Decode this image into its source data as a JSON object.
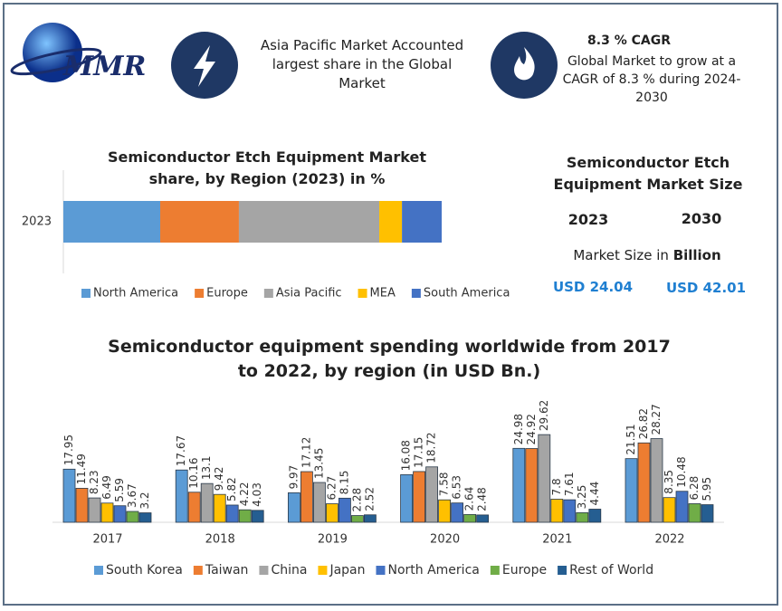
{
  "header": {
    "logo": "MMR",
    "highlight": "Asia Pacific Market Accounted largest share in the Global Market",
    "cagr_title": "8.3 % CAGR",
    "cagr_text": "Global Market to grow at a CAGR of 8.3 % during 2024-2030"
  },
  "market_size": {
    "title": "Semiconductor Etch Equipment Market Size",
    "years": [
      "2023",
      "2030"
    ],
    "unit_label": "Market Size in",
    "unit": "Billion",
    "values": [
      "USD 24.04",
      "USD 42.01"
    ]
  },
  "chart_data": [
    {
      "type": "bar",
      "orientation": "horizontal",
      "stacked": true,
      "title": "Semiconductor Etch Equipment Market share, by Region (2023) in %",
      "categories": [
        "2023"
      ],
      "legend": "bottom",
      "series": [
        {
          "name": "North America",
          "color": "#5b9bd5",
          "values": [
            25.6
          ]
        },
        {
          "name": "Europe",
          "color": "#ed7d31",
          "values": [
            20.8
          ]
        },
        {
          "name": "Asia Pacific",
          "color": "#a5a5a5",
          "values": [
            37.1
          ]
        },
        {
          "name": "MEA",
          "color": "#ffc000",
          "values": [
            6.0
          ]
        },
        {
          "name": "South America",
          "color": "#4472c4",
          "values": [
            10.5
          ]
        }
      ]
    },
    {
      "type": "bar",
      "orientation": "vertical",
      "stacked": false,
      "title": "Semiconductor equipment spending worldwide from 2017 to 2022, by region (in USD Bn.)",
      "categories": [
        "2017",
        "2018",
        "2019",
        "2020",
        "2021",
        "2022"
      ],
      "legend": "bottom",
      "series": [
        {
          "name": "South Korea",
          "color": "#5b9bd5",
          "values": [
            17.95,
            17.67,
            9.97,
            16.08,
            24.98,
            21.51
          ]
        },
        {
          "name": "Taiwan",
          "color": "#ed7d31",
          "values": [
            11.49,
            10.16,
            17.12,
            17.15,
            24.92,
            26.82
          ]
        },
        {
          "name": "China",
          "color": "#a5a5a5",
          "values": [
            8.23,
            13.1,
            13.45,
            18.72,
            29.62,
            28.27
          ]
        },
        {
          "name": "Japan",
          "color": "#ffc000",
          "values": [
            6.49,
            9.42,
            6.27,
            7.58,
            7.8,
            8.35
          ]
        },
        {
          "name": "North America",
          "color": "#4472c4",
          "values": [
            5.59,
            5.82,
            8.15,
            6.53,
            7.61,
            10.48
          ]
        },
        {
          "name": "Europe",
          "color": "#70ad47",
          "values": [
            3.67,
            4.22,
            2.28,
            2.64,
            3.25,
            6.28
          ]
        },
        {
          "name": "Rest of World",
          "color": "#255e91",
          "values": [
            3.2,
            4.03,
            2.52,
            2.48,
            4.44,
            5.95
          ]
        }
      ]
    }
  ]
}
